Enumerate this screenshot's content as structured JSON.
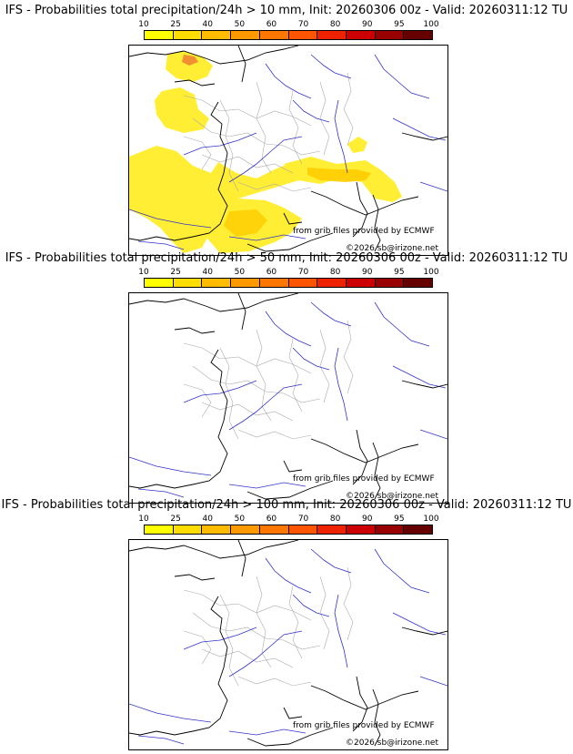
{
  "panels": [
    {
      "title": "IFS - Probabilities total precipitation/24h > 10 mm, Init: 20260306 00z - Valid: 20260311:12 TU",
      "threshold": "10 mm",
      "has_precip": true
    },
    {
      "title": "IFS - Probabilities total precipitation/24h > 50 mm, Init: 20260306 00z - Valid: 20260311:12 TU",
      "threshold": "50 mm",
      "has_precip": false
    },
    {
      "title": "IFS - Probabilities total precipitation/24h > 100 mm, Init: 20260306 00z - Valid: 20260311:12 TU",
      "threshold": "100 mm",
      "has_precip": false
    }
  ],
  "colorbar": {
    "labels": [
      "10",
      "25",
      "40",
      "50",
      "60",
      "70",
      "80",
      "90",
      "95",
      "100"
    ],
    "colors": [
      "#ffff00",
      "#ffdd00",
      "#ffbb00",
      "#ff9900",
      "#ff7700",
      "#ff5500",
      "#ee2200",
      "#cc0000",
      "#990000",
      "#660000"
    ]
  },
  "credits": {
    "source": "from grib files provided by ECMWF",
    "copyright": "©2026 sb@irizone.net"
  },
  "colors": {
    "coast": "#000000",
    "rivers": "#3333cc",
    "borders": "#aaaaaa",
    "precip_light": "#ffee33",
    "precip_mid": "#ffcc00",
    "precip_strong": "#ee7733"
  }
}
